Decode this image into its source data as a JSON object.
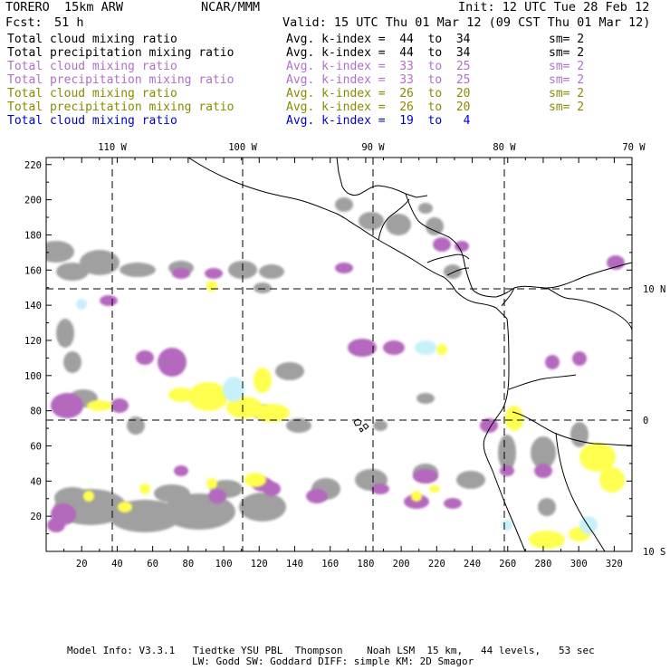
{
  "header": {
    "model": "TORERO  15km ARW",
    "center": "NCAR/MMM",
    "init": "Init: 12 UTC Tue 28 Feb 12",
    "fcst_label": "Fcst:",
    "fcst_value": "51 h",
    "valid": "Valid: 15 UTC Thu 01 Mar 12 (09 CST Thu 01 Mar 12)"
  },
  "legend": [
    {
      "field": "Total cloud mixing ratio",
      "avg": "Avg. k-index =  44  to  34",
      "sm": "sm= 2",
      "color": "#000000"
    },
    {
      "field": "Total precipitation mixing ratio",
      "avg": "Avg. k-index =  44  to  34",
      "sm": "sm= 2",
      "color": "#000000"
    },
    {
      "field": "Total cloud mixing ratio",
      "avg": "Avg. k-index =  33  to  25",
      "sm": "sm= 2",
      "color": "#b070c8"
    },
    {
      "field": "Total precipitation mixing ratio",
      "avg": "Avg. k-index =  33  to  25",
      "sm": "sm= 2",
      "color": "#b070c8"
    },
    {
      "field": "Total cloud mixing ratio",
      "avg": "Avg. k-index =  26  to  20",
      "sm": "sm= 2",
      "color": "#8a8a00"
    },
    {
      "field": "Total precipitation mixing ratio",
      "avg": "Avg. k-index =  26  to  20",
      "sm": "sm= 2",
      "color": "#8a8a00"
    },
    {
      "field": "Total cloud mixing ratio",
      "avg": "Avg. k-index =  19  to   4",
      "sm": "",
      "color": "#0000cc"
    }
  ],
  "map": {
    "lon_labels": [
      "110 W",
      "100 W",
      "90 W",
      "80 W",
      "70 W"
    ],
    "lat_labels": [
      "10 N",
      "0",
      "10 S"
    ],
    "x_ticks": [
      "20",
      "40",
      "60",
      "80",
      "100",
      "120",
      "140",
      "160",
      "180",
      "200",
      "220",
      "240",
      "260",
      "280",
      "300",
      "320"
    ],
    "y_ticks": [
      "20",
      "40",
      "60",
      "80",
      "100",
      "120",
      "140",
      "160",
      "180",
      "200",
      "220"
    ],
    "colors": {
      "gray": "#a0a0a0",
      "purple": "#b468be",
      "yellow": "#ffff50",
      "cyan": "#c8f0f8",
      "coast": "#000000"
    }
  },
  "footer": {
    "line1": "Model Info: V3.3.1   Tiedtke YSU PBL  Thompson    Noah LSM  15 km,   44 levels,   53 sec",
    "line2": "LW: Godd SW: Goddard DIFF: simple KM: 2D Smagor"
  }
}
